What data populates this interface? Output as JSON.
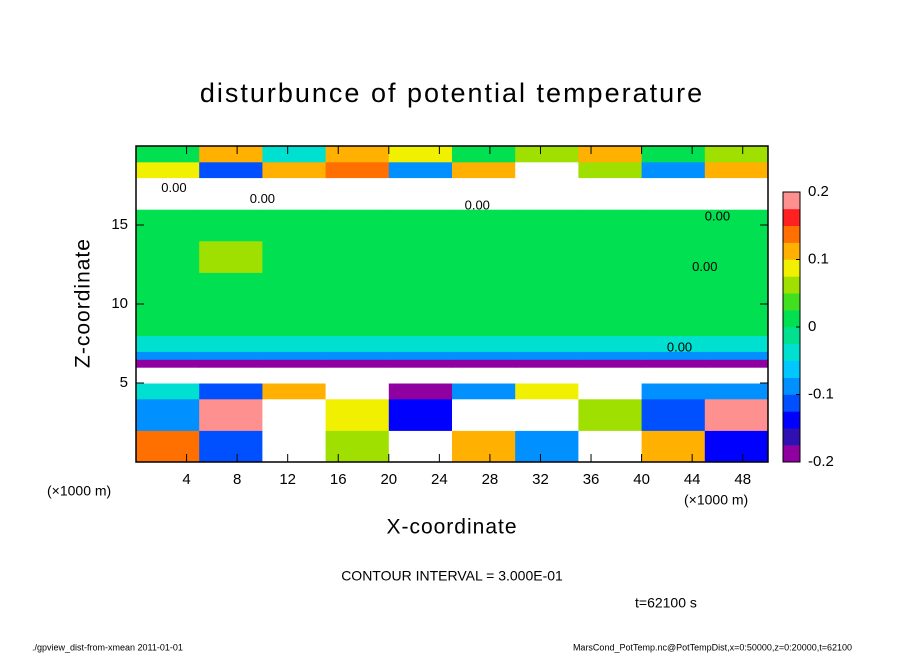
{
  "chart_data": {
    "type": "heatmap",
    "title": "disturbunce of potential temperature",
    "x_label": "X-coordinate",
    "y_label": "Z-coordinate",
    "x_unit": "(×1000 m)",
    "y_unit": "(×1000 m)",
    "contour_interval": "CONTOUR INTERVAL = 3.000E-01",
    "time_label": "t=62100 s",
    "footer_left": "./gpview_dist-from-xmean   2011-01-01",
    "footer_right": "MarsCond_PotTemp.nc@PotTempDist,x=0:50000,z=0:20000,t=62100",
    "xlim": [
      0,
      50
    ],
    "ylim": [
      0,
      20
    ],
    "xticks": [
      4,
      8,
      12,
      16,
      20,
      24,
      28,
      32,
      36,
      40,
      44,
      48
    ],
    "yticks": [
      5,
      10,
      15
    ],
    "xbins": [
      0,
      5,
      10,
      15,
      20,
      25,
      30,
      35,
      40,
      45,
      50
    ],
    "zbins": [
      0,
      2,
      4,
      5,
      6,
      6.5,
      7,
      8,
      10,
      12,
      14,
      16,
      17,
      18,
      19,
      20
    ],
    "values": [
      [
        0.15,
        -0.12,
        0.3,
        0.05,
        -0.3,
        0.12,
        -0.08,
        -0.3,
        0.1,
        -0.15
      ],
      [
        -0.1,
        0.18,
        -0.3,
        0.08,
        -0.15,
        0.3,
        -0.3,
        0.05,
        -0.12,
        0.2
      ],
      [
        -0.05,
        -0.12,
        0.1,
        -0.3,
        -0.18,
        -0.1,
        0.08,
        -0.3,
        -0.08,
        -0.1
      ],
      [
        -0.3,
        -0.3,
        -0.3,
        -0.3,
        -0.3,
        -0.3,
        -0.3,
        -0.3,
        -0.3,
        -0.3
      ],
      [
        -0.19,
        -0.19,
        -0.19,
        -0.19,
        -0.19,
        -0.19,
        -0.19,
        -0.19,
        -0.19,
        -0.19
      ],
      [
        -0.1,
        -0.1,
        -0.1,
        -0.1,
        -0.1,
        -0.1,
        -0.1,
        -0.1,
        -0.1,
        -0.1
      ],
      [
        -0.03,
        -0.03,
        -0.03,
        -0.03,
        -0.03,
        -0.03,
        -0.03,
        -0.03,
        -0.03,
        -0.03
      ],
      [
        0,
        0,
        0.01,
        0,
        0,
        0.01,
        0,
        0,
        0.01,
        0
      ],
      [
        0,
        0,
        0.01,
        0,
        0.02,
        0.01,
        0,
        0.01,
        0.02,
        0
      ],
      [
        0.02,
        0.06,
        0.01,
        0,
        0,
        0,
        0,
        0.01,
        0.02,
        0.01
      ],
      [
        0.01,
        0.01,
        0.01,
        0.01,
        0,
        0,
        0,
        0,
        0.01,
        0.01
      ],
      [
        -0.3,
        -0.3,
        0.25,
        -0.3,
        -0.3,
        -0.3,
        0.25,
        -0.3,
        -0.3,
        -0.3
      ],
      [
        -0.3,
        0.3,
        -0.3,
        -0.3,
        0.3,
        -0.3,
        -0.3,
        0.25,
        -0.3,
        -0.3
      ],
      [
        0.08,
        -0.12,
        0.1,
        0.15,
        -0.1,
        0.12,
        0.3,
        0.05,
        -0.1,
        0.1
      ],
      [
        0.02,
        0.1,
        -0.05,
        0.12,
        0.08,
        0.02,
        0.05,
        0.1,
        0.02,
        0.05
      ]
    ],
    "colorbar": {
      "lim": [
        -0.2,
        0.2
      ],
      "ticks": [
        -0.2,
        -0.1,
        0,
        0.1,
        0.2
      ],
      "colors": [
        "#9000a0",
        "#3010b0",
        "#0000ff",
        "#0050ff",
        "#0090ff",
        "#00c8ff",
        "#00e0d0",
        "#00e090",
        "#00e050",
        "#40e020",
        "#a0e000",
        "#f0f000",
        "#ffb000",
        "#ff7000",
        "#ff2020",
        "#ff9090"
      ]
    },
    "contour_labels": [
      {
        "x": 3,
        "z": 17.3,
        "label": "0.00"
      },
      {
        "x": 10,
        "z": 16.6,
        "label": "0.00"
      },
      {
        "x": 27,
        "z": 16.2,
        "label": "0.00"
      },
      {
        "x": 46,
        "z": 15.5,
        "label": "0.00"
      },
      {
        "x": 45,
        "z": 12.3,
        "label": "0.00"
      },
      {
        "x": 43,
        "z": 7.2,
        "label": "0.00"
      }
    ]
  }
}
